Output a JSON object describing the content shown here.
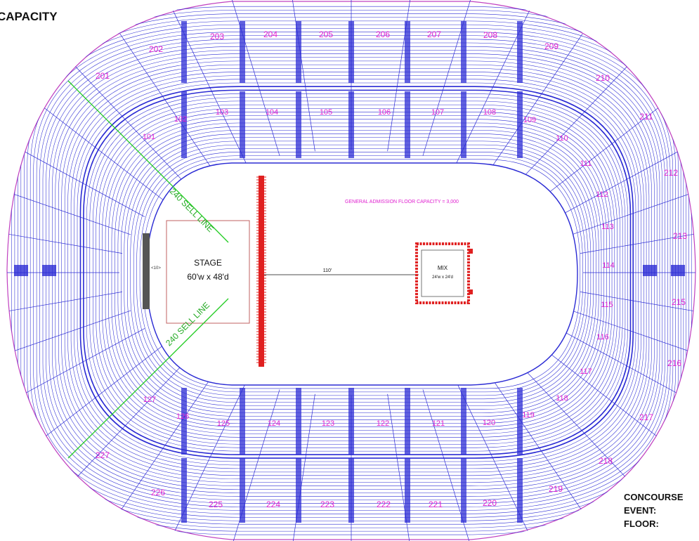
{
  "header": {
    "title": "CAPACITY"
  },
  "legend": {
    "concourse": "CONCOURSE",
    "event": "EVENT:",
    "floor": "FLOOR:"
  },
  "floor": {
    "stage_title": "STAGE",
    "stage_size": "60'w x 48'd",
    "stage_marker": "<10>",
    "mix_title": "MIX",
    "mix_size": "24'w x 24'd",
    "distance": "110'",
    "ga_capacity": "GENERAL ADMISSION FLOOR CAPACITY = 3,000",
    "sell_line_upper": "240 SELL LINE",
    "sell_line_lower": "240 SELL LINE"
  },
  "colors": {
    "seating": "#2b2bd4",
    "section_label": "#e020d0",
    "sell_line": "#22cc22",
    "barricade": "#e02020",
    "stage_border": "#c06060"
  },
  "sections_200_top": [
    "202",
    "203",
    "204",
    "205",
    "206",
    "207",
    "208",
    "209"
  ],
  "sections_200_right": [
    "210",
    "211",
    "212",
    "213",
    "215",
    "216",
    "217",
    "218",
    "219"
  ],
  "sections_200_bottom": [
    "220",
    "221",
    "222",
    "223",
    "224",
    "225",
    "226",
    "227"
  ],
  "sections_200_left": [
    "201"
  ],
  "sections_100_top": [
    "101",
    "102",
    "103",
    "104",
    "105",
    "106",
    "107",
    "108",
    "109",
    "110"
  ],
  "sections_100_right": [
    "111",
    "112",
    "113",
    "114",
    "115",
    "116",
    "117",
    "118",
    "119"
  ],
  "sections_100_bottom": [
    "120",
    "121",
    "122",
    "123",
    "124",
    "125",
    "126",
    "127"
  ]
}
